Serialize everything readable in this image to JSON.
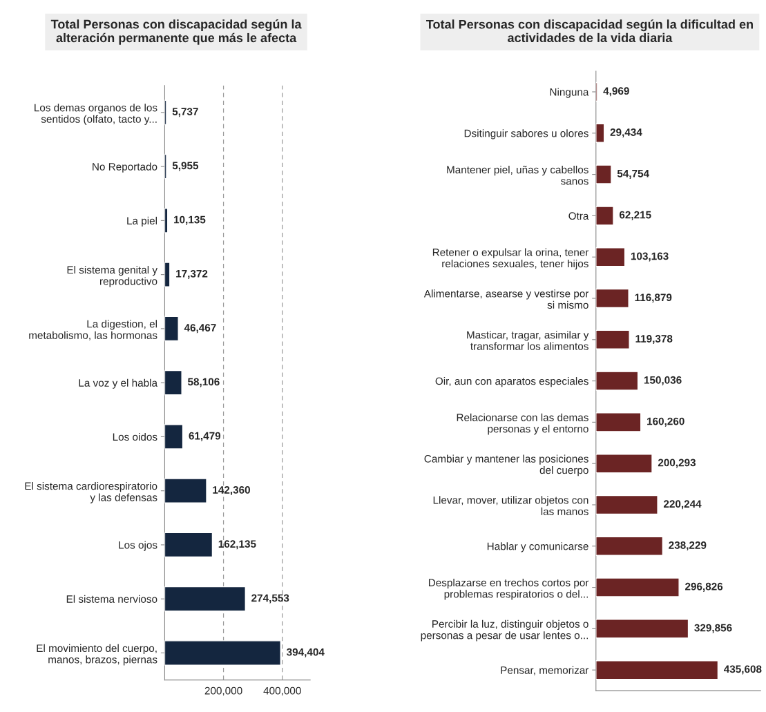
{
  "chart_data": [
    {
      "type": "bar",
      "orientation": "horizontal",
      "title": "Total Personas con discapacidad según la\nalteración permanente que más le afecta",
      "categories": [
        "Los demas organos de los\nsentidos (olfato, tacto y...",
        "No Reportado",
        "La piel",
        "El sistema genital y\nreproductivo",
        "La digestion, el\nmetabolismo, las hormonas",
        "La voz y el habla",
        "Los oidos",
        "El sistema cardiorespiratorio\ny las defensas",
        "Los ojos",
        "El sistema nervioso",
        "El movimiento del cuerpo,\nmanos, brazos, piernas"
      ],
      "series": [
        {
          "color": "#14263f",
          "values": [
            5737,
            5955,
            10135,
            17372,
            46467,
            58106,
            61479,
            142360,
            162135,
            274553,
            394404
          ],
          "value_labels": [
            "5,737",
            "5,955",
            "10,135",
            "17,372",
            "46,467",
            "58,106",
            "61,479",
            "142,360",
            "162,135",
            "274,553",
            "394,404"
          ]
        }
      ],
      "xlim": [
        0,
        495000
      ],
      "xticks": [
        {
          "value": 200000,
          "label": "200,000"
        },
        {
          "value": 400000,
          "label": "400,000"
        }
      ],
      "grid": "x"
    },
    {
      "type": "bar",
      "orientation": "horizontal",
      "title": "Total Personas con discapacidad según la dificultad en\nactividades de la vida diaria",
      "categories": [
        "Ninguna",
        "Dsitinguir sabores u olores",
        "Mantener piel, uñas y cabellos\nsanos",
        "Otra",
        "Retener o expulsar la orina, tener\nrelaciones sexuales, tener hijos",
        "Alimentarse, asearse y vestirse por\nsi mismo",
        "Masticar, tragar, asimilar y\ntransformar los alimentos",
        "Oir, aun con aparatos especiales",
        "Relacionarse con las demas\npersonas y el entorno",
        "Cambiar y mantener las posiciones\ndel cuerpo",
        "Llevar, mover, utilizar objetos con\nlas manos",
        "Hablar y comunicarse",
        "Desplazarse en trechos cortos por\nproblemas respiratorios o del...",
        "Percibir la luz, distinguir objetos o\npersonas a pesar de usar lentes o...",
        "Pensar, memorizar"
      ],
      "series": [
        {
          "color": "#6b2424",
          "values": [
            4969,
            29434,
            54754,
            62215,
            103163,
            116879,
            119378,
            150036,
            160260,
            200293,
            220244,
            238229,
            296826,
            329856,
            435608
          ],
          "value_labels": [
            "4,969",
            "29,434",
            "54,754",
            "62,215",
            "103,163",
            "116,879",
            "119,378",
            "150,036",
            "160,260",
            "200,293",
            "220,244",
            "238,229",
            "296,826",
            "329,856",
            "435,608"
          ]
        }
      ],
      "tick_labels": "y"
    }
  ]
}
